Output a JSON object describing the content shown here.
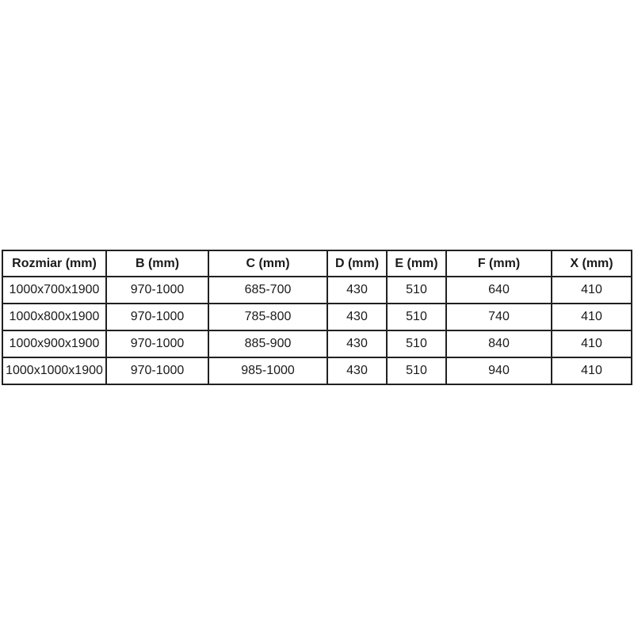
{
  "table": {
    "name": "product-dimensions-table",
    "columns": [
      "Rozmiar (mm)",
      "B (mm)",
      "C (mm)",
      "D (mm)",
      "E (mm)",
      "F (mm)",
      "X (mm)"
    ],
    "rows": [
      [
        "1000x700x1900",
        "970-1000",
        "685-700",
        "430",
        "510",
        "640",
        "410"
      ],
      [
        "1000x800x1900",
        "970-1000",
        "785-800",
        "430",
        "510",
        "740",
        "410"
      ],
      [
        "1000x900x1900",
        "970-1000",
        "885-900",
        "430",
        "510",
        "840",
        "410"
      ],
      [
        "1000x1000x1900",
        "970-1000",
        "985-1000",
        "430",
        "510",
        "940",
        "410"
      ]
    ]
  },
  "colors": {
    "background": "#ffffff",
    "border": "#212121",
    "text": "#1a1a1a"
  }
}
